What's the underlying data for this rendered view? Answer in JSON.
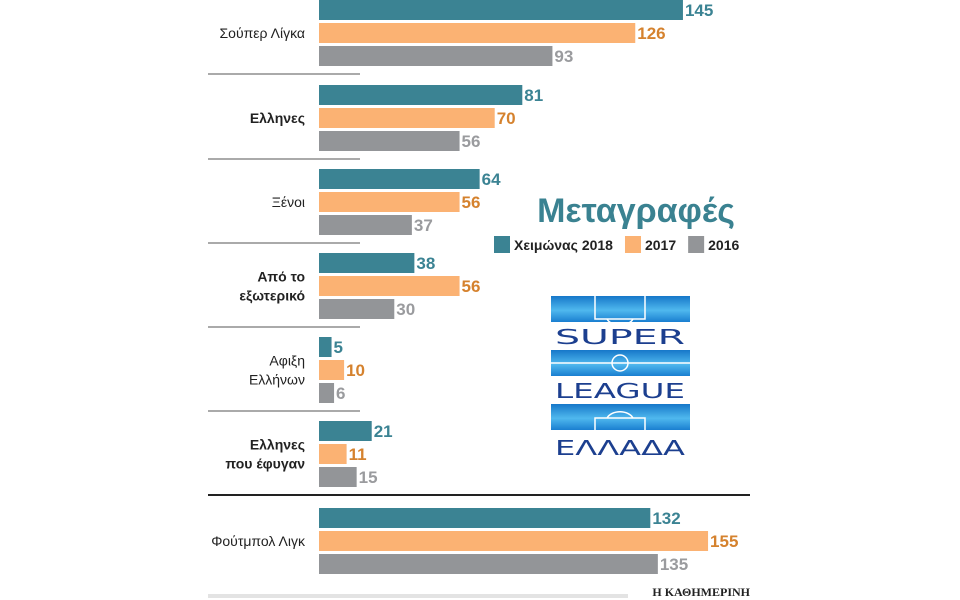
{
  "chart_data": {
    "type": "bar",
    "orientation": "horizontal",
    "title": "Μεταγραφές",
    "categories": [
      [
        "Σούπερ Λίγκα"
      ],
      [
        "Ελληνες"
      ],
      [
        "Ξένοι"
      ],
      [
        "Από το",
        "εξωτερικό"
      ],
      [
        "Αφιξη",
        "Ελλήνων"
      ],
      [
        "Ελληνες",
        "που έφυγαν"
      ],
      [
        "Φούτμπολ Λιγκ"
      ]
    ],
    "bold_categories": [
      false,
      true,
      false,
      true,
      false,
      true,
      false
    ],
    "series": [
      {
        "name": "Χειμώνας 2018",
        "color": "#3b8393",
        "label_color": "#3b8393",
        "values": [
          145,
          81,
          64,
          38,
          5,
          21,
          132
        ]
      },
      {
        "name": "2017",
        "color": "#fbb273",
        "label_color": "#d5822e",
        "values": [
          126,
          70,
          56,
          56,
          10,
          11,
          155
        ]
      },
      {
        "name": "2016",
        "color": "#939598",
        "label_color": "#9a9b9e",
        "values": [
          93,
          56,
          37,
          30,
          6,
          15,
          135
        ]
      }
    ],
    "legend_position": "right",
    "grid": false,
    "xlim": [
      0,
      160
    ]
  },
  "logo": {
    "lines": [
      "SUPER",
      "LEAGUE",
      "ΕΛΛΑΔΑ"
    ],
    "color": "#1c3f8f",
    "band_color": "#1f8fd6"
  },
  "footer": {
    "brand": "Η ΚΑΘΗΜΕΡΙΝΗ"
  }
}
